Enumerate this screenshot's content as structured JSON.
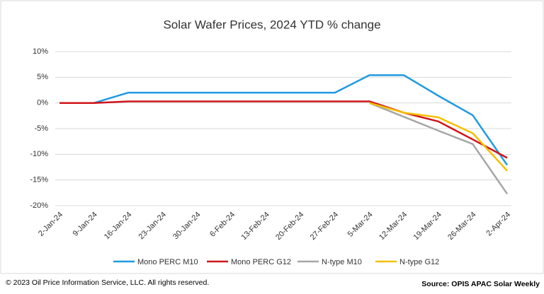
{
  "chart_data": {
    "type": "line",
    "title": "Solar Wafer Prices, 2024 YTD % change",
    "categories": [
      "2-Jan-24",
      "9-Jan-24",
      "16-Jan-24",
      "23-Jan-24",
      "30-Jan-24",
      "6-Feb-24",
      "13-Feb-24",
      "20-Feb-24",
      "27-Feb-24",
      "5-Mar-24",
      "12-Mar-24",
      "19-Mar-24",
      "26-Mar-24",
      "2-Apr-24"
    ],
    "series": [
      {
        "name": "Mono PERC M10",
        "color": "#1f9ae0",
        "values": [
          0,
          0,
          2,
          2,
          2,
          2,
          2,
          2,
          2,
          5.4,
          5.4,
          1.4,
          -2.4,
          -12.1
        ]
      },
      {
        "name": "Mono PERC G12",
        "color": "#d0151b",
        "values": [
          0,
          0,
          0.3,
          0.3,
          0.3,
          0.3,
          0.3,
          0.3,
          0.3,
          0.3,
          -1.9,
          -3.6,
          -7.1,
          -10.7
        ]
      },
      {
        "name": "N-type M10",
        "color": "#a6a6a6",
        "values": [
          null,
          null,
          null,
          null,
          null,
          null,
          null,
          null,
          null,
          0,
          -2.7,
          -5.4,
          -8.0,
          -17.7
        ]
      },
      {
        "name": "N-type G12",
        "color": "#f5c000",
        "values": [
          null,
          null,
          null,
          null,
          null,
          null,
          null,
          null,
          null,
          0,
          -1.9,
          -2.8,
          -5.9,
          -13.2
        ]
      }
    ],
    "ylim": [
      -20,
      10
    ],
    "yticks": [
      {
        "value": -20,
        "label": "-20%"
      },
      {
        "value": -15,
        "label": "-15%"
      },
      {
        "value": -10,
        "label": "-10%"
      },
      {
        "value": -5,
        "label": "-5%"
      },
      {
        "value": 0,
        "label": "0%"
      },
      {
        "value": 5,
        "label": "5%"
      },
      {
        "value": 10,
        "label": "10%"
      }
    ],
    "grid": true,
    "legend": "bottom",
    "footer_left": "© 2023 Oil Price Information Service, LLC. All rights reserved.",
    "footer_right": "Source: OPIS APAC Solar Weekly"
  }
}
